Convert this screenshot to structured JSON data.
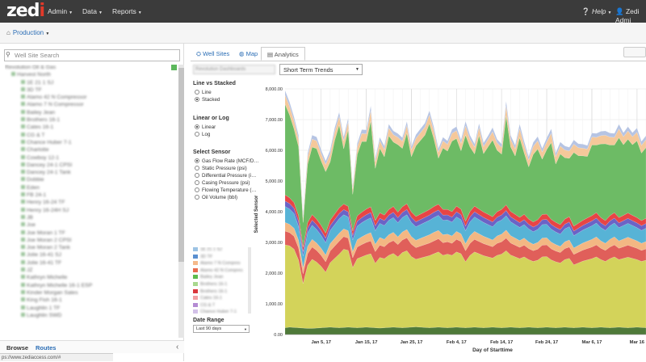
{
  "nav": {
    "logo_text": "zed",
    "logo_accent": "i",
    "menu": [
      {
        "label": "Admin"
      },
      {
        "label": "Data"
      },
      {
        "label": "Reports"
      }
    ],
    "help_label": "Help",
    "user_label": "Zedi Admi"
  },
  "breadcrumb": {
    "label": "Production"
  },
  "sidebar": {
    "search_placeholder": "Well Site Search",
    "tree_items": [
      "Revolution Oil & Gas",
      "Harvest North",
      "1E 21 1 SJ",
      "3D TF",
      "Alamo 42 N Compressor",
      "Alamo 7 N Compressor",
      "Bailey Jean",
      "Brothers 16-1",
      "Cates 16-1",
      "CG & T",
      "Chance Huber 7-1",
      "Charlotte",
      "Cowboy 12-1",
      "Dancey 24-1 CPSI",
      "Dancey 24-1 Tank",
      "Dobbie",
      "Eden",
      "FB 24-1",
      "Henry 16-24 TF",
      "Henry 16-24H SJ",
      "JB",
      "Joe",
      "Joe Moran 1 TF",
      "Joe Moran 2 CPSI",
      "Joe Moran 2 Tank",
      "Jolie 16-41 SJ",
      "Jolie 16-41 TF",
      "JZ",
      "Kathryn Michelle",
      "Kathryn Michelle 16-1 ESP",
      "Kinder Morgan Sales",
      "King Fish 16-1",
      "Laughlin 1 TF",
      "Laughlin SWD"
    ],
    "tabs": {
      "browse": "Browse",
      "routes": "Routes"
    },
    "status_url": "ps://www.zediaccess.com/#"
  },
  "tabs": {
    "well_sites": "Well Sites",
    "map": "Map",
    "analytics": "Analytics"
  },
  "controls": {
    "site_select": "Revolution Dashboards",
    "trend_select": "Short Term Trends",
    "line_vs_stacked": {
      "title": "Line vs Stacked",
      "options": [
        "Line",
        "Stacked"
      ],
      "selected": "Stacked"
    },
    "linear_or_log": {
      "title": "Linear or Log",
      "options": [
        "Linear",
        "Log"
      ],
      "selected": "Linear"
    },
    "select_sensor": {
      "title": "Select Sensor",
      "options": [
        "Gas Flow Rate (MCF/D…",
        "Static Pressure (psi)",
        "Differential Pressure (i…",
        "Casing Pressure (psi)",
        "Flowing Temperature (…",
        "Oil Volume (bbl)"
      ],
      "selected": "Gas Flow Rate (MCF/D…"
    },
    "date_range": {
      "title": "Date Range",
      "value": "Last 90 days"
    }
  },
  "legend": [
    {
      "label": "1E 21 1 SJ",
      "color": "#9cc3e4"
    },
    {
      "label": "3D TF",
      "color": "#5a8fd0"
    },
    {
      "label": "Alamo 7 N Compres",
      "color": "#f5b98a"
    },
    {
      "label": "Alamo 42 N Compres",
      "color": "#e86b4e"
    },
    {
      "label": "Bailey Jean",
      "color": "#5dbb4e"
    },
    {
      "label": "Brothers 16-1",
      "color": "#a8d88e"
    },
    {
      "label": "Brothers 16-1",
      "color": "#d9383d"
    },
    {
      "label": "Cates 16-1",
      "color": "#f2a0a4"
    },
    {
      "label": "CG & T",
      "color": "#b48bd3"
    },
    {
      "label": "Chance Huber 7-1",
      "color": "#d3c1e8"
    },
    {
      "label": "Charlotte",
      "color": "#8b5a4a"
    },
    {
      "label": "Cowboy 12-1",
      "color": "#c9a39a"
    }
  ],
  "chart_data": {
    "type": "area",
    "stacked": true,
    "xlabel": "Day of Starttime",
    "ylabel": "Selected Sensor",
    "ylim": [
      0,
      8000
    ],
    "y_ticks": [
      "0.00",
      "1,000.00",
      "2,000.00",
      "3,000.00",
      "4,000.00",
      "5,000.00",
      "6,000.00",
      "7,000.00",
      "8,000.00"
    ],
    "x_ticks": [
      "Jan 5, 17",
      "Jan 15, 17",
      "Jan 25, 17",
      "Feb 4, 17",
      "Feb 14, 17",
      "Feb 24, 17",
      "Mar 6, 17",
      "Mar 16"
    ],
    "x_tick_days": [
      4,
      14,
      24,
      34,
      44,
      54,
      64,
      74
    ],
    "x_range_days": [
      -4,
      76
    ],
    "x": [
      -4,
      -3,
      -2,
      -1,
      0,
      1,
      2,
      3,
      4,
      5,
      6,
      7,
      8,
      9,
      10,
      11,
      12,
      13,
      14,
      15,
      16,
      17,
      18,
      19,
      20,
      21,
      22,
      23,
      24,
      25,
      26,
      27,
      28,
      29,
      30,
      31,
      32,
      33,
      34,
      35,
      36,
      37,
      38,
      39,
      40,
      41,
      42,
      43,
      44,
      45,
      46,
      47,
      48,
      49,
      50,
      51,
      52,
      53,
      54,
      55,
      56,
      57,
      58,
      59,
      60,
      61,
      62,
      63,
      64,
      65,
      66,
      67,
      68,
      69,
      70,
      71,
      72,
      73,
      74,
      75,
      76
    ],
    "series": [
      {
        "name": "",
        "color": "#4f7a3a",
        "values": [
          220,
          240,
          230,
          220,
          210,
          200,
          200,
          210,
          220,
          230,
          240,
          230,
          220,
          230,
          240,
          230,
          220,
          230,
          240,
          230,
          220,
          210,
          220,
          230,
          240,
          230,
          220,
          230,
          240,
          250,
          240,
          230,
          220,
          230,
          240,
          230,
          220,
          230,
          240,
          230,
          220,
          230,
          240,
          230,
          220,
          230,
          240,
          230,
          220,
          230,
          240,
          230,
          220,
          230,
          240,
          230,
          220,
          230,
          240,
          230,
          220,
          230,
          240,
          230,
          220,
          230,
          240,
          230,
          220,
          230,
          240,
          230,
          220,
          230,
          240,
          230,
          220,
          230,
          240,
          230,
          220
        ]
      },
      {
        "name": "",
        "color": "#d3d35a",
        "values": [
          2700,
          2650,
          2550,
          2200,
          1450,
          2050,
          2250,
          2150,
          2000,
          1800,
          2100,
          2250,
          2400,
          2550,
          2500,
          1950,
          2250,
          2300,
          2350,
          2400,
          2100,
          2300,
          2250,
          2350,
          2400,
          2300,
          2450,
          2500,
          2300,
          2200,
          2250,
          2300,
          2350,
          2400,
          2450,
          2350,
          2400,
          2350,
          2450,
          2400,
          2150,
          2350,
          2450,
          2400,
          2350,
          2300,
          2250,
          2350,
          2400,
          2500,
          2350,
          2300,
          2250,
          2300,
          2200,
          2150,
          2200,
          2300,
          2300,
          2200,
          2150,
          2100,
          2200,
          2250,
          2050,
          2100,
          2150,
          2200,
          2250,
          2300,
          2200,
          2150,
          2250,
          2300,
          2200,
          2250,
          2300,
          2250,
          2200,
          2150,
          2200
        ]
      },
      {
        "name": "",
        "color": "#e05f5a",
        "values": [
          450,
          430,
          420,
          400,
          320,
          380,
          400,
          380,
          360,
          340,
          380,
          400,
          420,
          410,
          400,
          320,
          380,
          400,
          410,
          420,
          380,
          400,
          390,
          410,
          420,
          400,
          410,
          420,
          400,
          380,
          390,
          400,
          410,
          420,
          430,
          410,
          400,
          390,
          410,
          400,
          360,
          390,
          410,
          400,
          390,
          380,
          370,
          390,
          400,
          410,
          390,
          380,
          370,
          380,
          360,
          350,
          360,
          380,
          380,
          360,
          350,
          340,
          360,
          370,
          340,
          350,
          360,
          370,
          380,
          390,
          370,
          360,
          380,
          390,
          370,
          380,
          390,
          380,
          370,
          360,
          370
        ]
      },
      {
        "name": "",
        "color": "#f3b783",
        "values": [
          280,
          270,
          260,
          250,
          200,
          240,
          250,
          240,
          230,
          220,
          240,
          250,
          260,
          250,
          240,
          200,
          240,
          250,
          260,
          270,
          240,
          250,
          240,
          260,
          270,
          250,
          260,
          270,
          250,
          240,
          250,
          260,
          270,
          280,
          270,
          260,
          250,
          240,
          260,
          250,
          230,
          250,
          260,
          250,
          240,
          230,
          220,
          240,
          250,
          260,
          240,
          230,
          220,
          230,
          220,
          210,
          220,
          230,
          230,
          220,
          210,
          200,
          220,
          230,
          210,
          220,
          230,
          240,
          250,
          260,
          240,
          230,
          250,
          260,
          240,
          250,
          260,
          250,
          240,
          230,
          240
        ]
      },
      {
        "name": "",
        "color": "#57b3d6",
        "values": [
          520,
          500,
          480,
          450,
          380,
          440,
          460,
          440,
          420,
          400,
          430,
          450,
          470,
          460,
          450,
          380,
          440,
          460,
          470,
          480,
          440,
          460,
          450,
          470,
          480,
          460,
          470,
          480,
          460,
          440,
          450,
          460,
          470,
          480,
          490,
          470,
          460,
          450,
          470,
          460,
          420,
          450,
          470,
          460,
          450,
          440,
          430,
          450,
          460,
          470,
          450,
          440,
          430,
          440,
          420,
          410,
          420,
          440,
          440,
          420,
          410,
          400,
          420,
          430,
          400,
          410,
          420,
          430,
          440,
          450,
          430,
          420,
          440,
          450,
          430,
          440,
          450,
          440,
          430,
          420,
          430
        ]
      },
      {
        "name": "",
        "color": "#6b63c6",
        "values": [
          180,
          175,
          170,
          165,
          140,
          160,
          165,
          160,
          155,
          150,
          160,
          165,
          170,
          168,
          165,
          140,
          160,
          165,
          170,
          172,
          160,
          165,
          162,
          168,
          172,
          165,
          168,
          172,
          165,
          160,
          162,
          165,
          168,
          172,
          175,
          170,
          165,
          162,
          168,
          165,
          150,
          162,
          168,
          165,
          162,
          160,
          155,
          162,
          165,
          168,
          162,
          160,
          155,
          160,
          152,
          150,
          152,
          158,
          158,
          152,
          150,
          148,
          152,
          156,
          148,
          150,
          152,
          156,
          158,
          162,
          156,
          152,
          158,
          162,
          156,
          158,
          162,
          158,
          156,
          152,
          156
        ]
      },
      {
        "name": "",
        "color": "#e84545",
        "values": [
          200,
          190,
          185,
          180,
          150,
          175,
          180,
          175,
          170,
          165,
          175,
          180,
          185,
          182,
          180,
          150,
          175,
          180,
          185,
          188,
          175,
          180,
          178,
          184,
          188,
          180,
          184,
          188,
          180,
          175,
          178,
          180,
          184,
          188,
          190,
          186,
          180,
          178,
          184,
          180,
          165,
          178,
          184,
          180,
          178,
          175,
          170,
          178,
          180,
          184,
          178,
          175,
          170,
          175,
          168,
          165,
          168,
          174,
          174,
          168,
          165,
          162,
          168,
          172,
          162,
          165,
          168,
          172,
          174,
          178,
          172,
          168,
          174,
          178,
          172,
          174,
          178,
          174,
          172,
          168,
          172
        ]
      },
      {
        "name": "",
        "color": "#6dbb65",
        "values": [
          2950,
          2700,
          2400,
          2250,
          800,
          1900,
          2200,
          2300,
          2100,
          2000,
          1900,
          2400,
          2700,
          1800,
          2500,
          1200,
          2000,
          2300,
          2200,
          2800,
          1700,
          2100,
          1900,
          2400,
          2100,
          2200,
          1900,
          2300,
          1800,
          2300,
          2400,
          2500,
          2800,
          2200,
          1500,
          2000,
          1900,
          2300,
          2200,
          1900,
          2800,
          2100,
          1700,
          2400,
          1900,
          2200,
          2500,
          2000,
          1800,
          2900,
          2100,
          1900,
          2600,
          2000,
          1700,
          2200,
          2300,
          1800,
          2100,
          2500,
          1900,
          2300,
          2000,
          1900,
          2400,
          2200,
          2100,
          2000,
          2300,
          2200,
          2400,
          2500,
          2300,
          2200,
          2600,
          2300,
          2400,
          2300,
          2500,
          2200,
          2300
        ]
      },
      {
        "name": "",
        "color": "#f5c89a",
        "values": [
          300,
          280,
          260,
          250,
          150,
          240,
          260,
          250,
          240,
          230,
          250,
          270,
          280,
          260,
          250,
          180,
          240,
          260,
          250,
          330,
          220,
          240,
          230,
          250,
          240,
          240,
          230,
          250,
          220,
          240,
          250,
          260,
          280,
          250,
          200,
          230,
          220,
          250,
          260,
          240,
          300,
          250,
          220,
          260,
          230,
          240,
          270,
          240,
          220,
          320,
          250,
          230,
          290,
          250,
          220,
          260,
          270,
          230,
          250,
          300,
          240,
          260,
          250,
          240,
          270,
          260,
          250,
          240,
          260,
          250,
          270,
          280,
          260,
          250,
          290,
          260,
          270,
          260,
          280,
          250,
          260
        ]
      },
      {
        "name": "",
        "color": "#b6c4e3",
        "values": [
          150,
          140,
          130,
          130,
          100,
          120,
          130,
          130,
          120,
          120,
          130,
          140,
          140,
          130,
          130,
          100,
          120,
          130,
          130,
          160,
          110,
          120,
          120,
          130,
          120,
          120,
          120,
          130,
          110,
          120,
          130,
          130,
          140,
          130,
          110,
          120,
          110,
          130,
          130,
          120,
          150,
          130,
          110,
          130,
          120,
          120,
          140,
          120,
          110,
          160,
          130,
          120,
          150,
          130,
          110,
          130,
          140,
          120,
          130,
          150,
          120,
          130,
          130,
          120,
          140,
          130,
          130,
          120,
          130,
          130,
          140,
          140,
          130,
          130,
          150,
          130,
          140,
          130,
          140,
          130,
          130
        ]
      }
    ]
  }
}
